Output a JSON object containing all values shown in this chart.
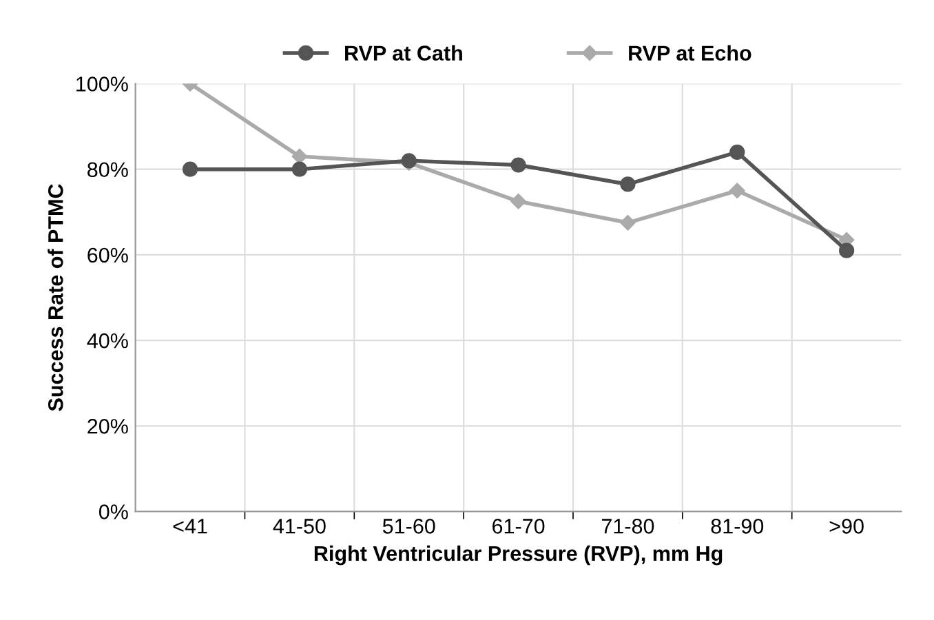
{
  "chart_data": {
    "type": "line",
    "xlabel": "Right Ventricular Pressure (RVP), mm Hg",
    "ylabel": "Success Rate of PTMC",
    "categories": [
      "<41",
      "41-50",
      "51-60",
      "61-70",
      "71-80",
      "81-90",
      ">90"
    ],
    "series": [
      {
        "name": "RVP at Cath",
        "color": "#555555",
        "marker": "circle",
        "values": [
          80,
          80,
          82,
          81,
          76.5,
          84,
          61
        ]
      },
      {
        "name": "RVP at Echo",
        "color": "#aaaaaa",
        "marker": "diamond",
        "values": [
          100,
          83,
          81.5,
          72.5,
          67.5,
          75,
          63.5
        ]
      }
    ],
    "ylim": [
      0,
      100
    ],
    "yticks": [
      {
        "value": 0,
        "label": "0%"
      },
      {
        "value": 20,
        "label": "20%"
      },
      {
        "value": 40,
        "label": "40%"
      },
      {
        "value": 60,
        "label": "60%"
      },
      {
        "value": 80,
        "label": "80%"
      },
      {
        "value": 100,
        "label": "100%"
      }
    ],
    "grid": true,
    "legend": "top",
    "line_style": "solid"
  }
}
